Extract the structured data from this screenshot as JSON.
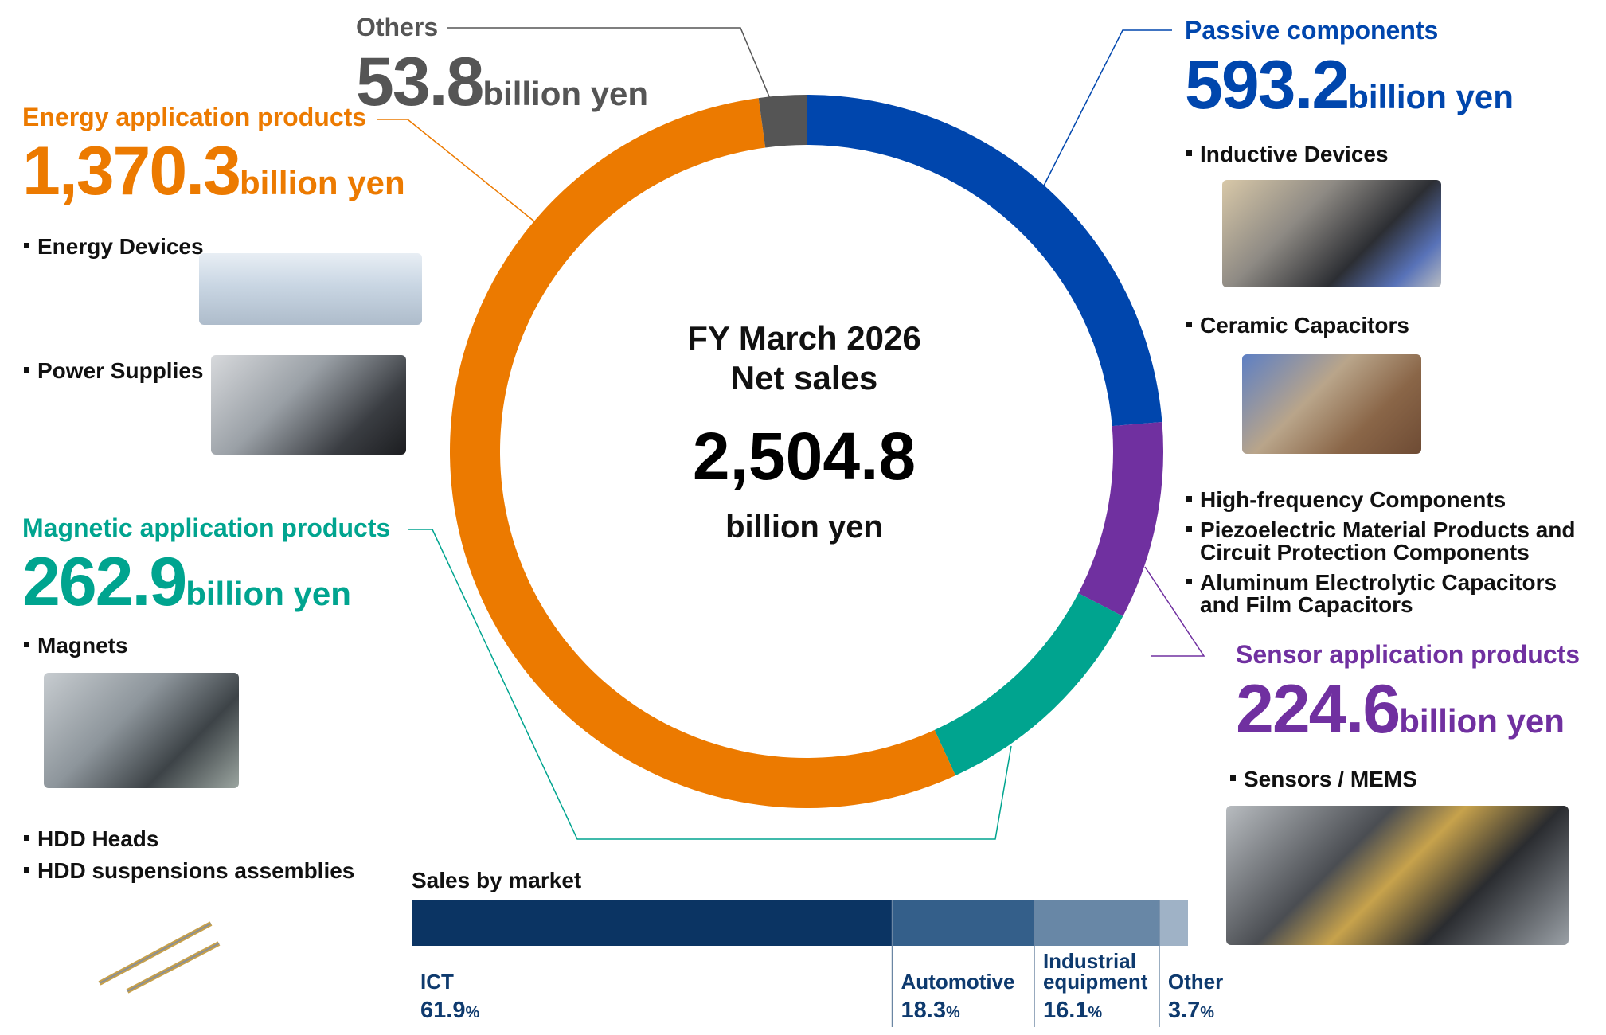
{
  "chart_data": {
    "type": "donut",
    "center": {
      "title_line1": "FY March 2026",
      "title_line2": "Net sales",
      "total": "2,504.8",
      "unit": "billion yen"
    },
    "segments": [
      {
        "name": "Passive components",
        "value": 593.2,
        "value_text": "593.2",
        "unit": "billion yen",
        "color": "#0046ad",
        "items": [
          "Inductive Devices",
          "Ceramic Capacitors",
          "High-frequency Components",
          "Piezoelectric Material Products and Circuit Protection Components",
          "Aluminum Electrolytic Capacitors and Film Capacitors"
        ]
      },
      {
        "name": "Sensor application products",
        "value": 224.6,
        "value_text": "224.6",
        "unit": "billion yen",
        "color": "#7030a0",
        "items": [
          "Sensors / MEMS"
        ]
      },
      {
        "name": "Magnetic application products",
        "value": 262.9,
        "value_text": "262.9",
        "unit": "billion yen",
        "color": "#00a48f",
        "items": [
          "Magnets",
          "HDD Heads",
          "HDD suspensions assemblies"
        ]
      },
      {
        "name": "Energy application products",
        "value": 1370.3,
        "value_text": "1,370.3",
        "unit": "billion yen",
        "color": "#ec7a00",
        "items": [
          "Energy Devices",
          "Power Supplies"
        ]
      },
      {
        "name": "Others",
        "value": 53.8,
        "value_text": "53.8",
        "unit": "billion yen",
        "color": "#555555",
        "items": []
      }
    ],
    "market": {
      "title": "Sales by market",
      "segments": [
        {
          "name": "ICT",
          "pct": 61.9,
          "pct_text": "61.9",
          "color": "#0b3463"
        },
        {
          "name": "Automotive",
          "pct": 18.3,
          "pct_text": "18.3",
          "color": "#345f8a"
        },
        {
          "name": "Industrial equipment",
          "pct": 16.1,
          "pct_text": "16.1",
          "color": "#6887a6"
        },
        {
          "name": "Other",
          "pct": 3.7,
          "pct_text": "3.7",
          "color": "#9fb2c6"
        }
      ],
      "pct_symbol": "%"
    }
  }
}
